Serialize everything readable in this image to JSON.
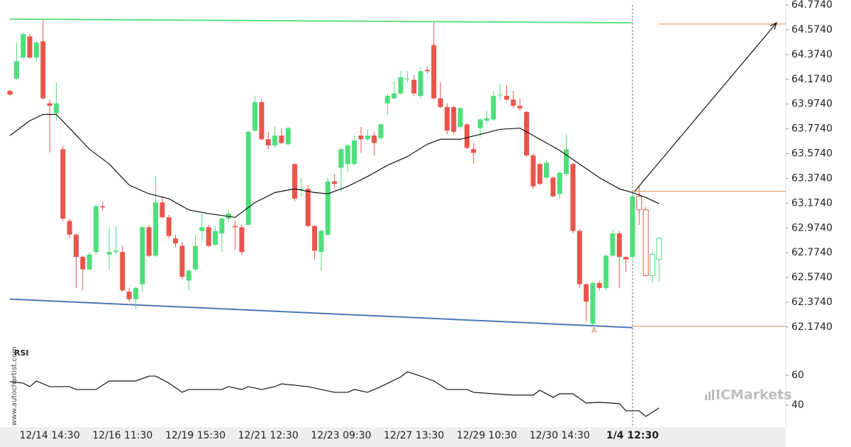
{
  "chart_data": {
    "type": "candlestick",
    "categories": [
      null,
      null,
      null,
      null,
      null,
      null,
      "12/14 14:30",
      null,
      null,
      null,
      null,
      null,
      null,
      null,
      null,
      null,
      null,
      "12/16 11:30",
      null,
      null,
      null,
      null,
      null,
      null,
      null,
      null,
      null,
      null,
      "12/19 15:30",
      null,
      null,
      null,
      null,
      null,
      null,
      null,
      null,
      null,
      null,
      "12/21 12:30",
      null,
      null,
      null,
      null,
      null,
      null,
      null,
      null,
      null,
      null,
      "12/23 09:30",
      null,
      null,
      null,
      null,
      null,
      null,
      null,
      null,
      null,
      null,
      "12/27 13:30",
      null,
      null,
      null,
      null,
      null,
      null,
      null,
      null,
      null,
      null,
      "12/29 10:30",
      null,
      null,
      null,
      null,
      null,
      null,
      null,
      null,
      null,
      null,
      "12/30 14:30",
      null,
      null,
      null,
      null,
      null,
      null,
      null,
      null,
      null,
      null,
      "1/4 12:30"
    ],
    "ohlc": [
      [
        64.08,
        64.09,
        64.04,
        64.05
      ],
      [
        64.18,
        64.47,
        64.17,
        64.32
      ],
      [
        64.35,
        64.55,
        64.34,
        64.54
      ],
      [
        64.52,
        64.54,
        64.34,
        64.35
      ],
      [
        64.35,
        64.48,
        64.32,
        64.47
      ],
      [
        64.48,
        64.65,
        64.01,
        64.02
      ],
      [
        63.98,
        64.01,
        63.58,
        63.96
      ],
      [
        63.9,
        64.15,
        63.84,
        63.98
      ],
      [
        63.61,
        63.64,
        63.03,
        63.05
      ],
      [
        63.03,
        63.05,
        62.89,
        62.92
      ],
      [
        62.92,
        62.93,
        62.49,
        62.74
      ],
      [
        62.74,
        62.75,
        62.47,
        62.64
      ],
      [
        62.64,
        62.78,
        62.63,
        62.76
      ],
      [
        62.78,
        63.16,
        62.76,
        63.15
      ],
      [
        63.15,
        63.19,
        63.11,
        63.14
      ],
      [
        62.76,
        62.98,
        62.64,
        62.78
      ],
      [
        62.78,
        62.99,
        62.76,
        62.79
      ],
      [
        62.78,
        62.83,
        62.46,
        62.47
      ],
      [
        62.46,
        62.49,
        62.38,
        62.4
      ],
      [
        62.4,
        62.5,
        62.32,
        62.49
      ],
      [
        62.52,
        62.99,
        62.46,
        62.98
      ],
      [
        62.98,
        63.0,
        62.74,
        62.75
      ],
      [
        62.75,
        63.39,
        62.74,
        63.18
      ],
      [
        63.18,
        63.23,
        63.05,
        63.06
      ],
      [
        63.06,
        63.08,
        62.89,
        62.91
      ],
      [
        62.89,
        62.92,
        62.82,
        62.85
      ],
      [
        62.83,
        62.86,
        62.56,
        62.58
      ],
      [
        62.55,
        62.64,
        62.47,
        62.63
      ],
      [
        62.64,
        62.92,
        62.63,
        62.83
      ],
      [
        62.95,
        63.09,
        62.86,
        62.98
      ],
      [
        62.98,
        63.0,
        62.82,
        62.83
      ],
      [
        62.84,
        62.99,
        62.83,
        62.95
      ],
      [
        62.93,
        63.06,
        62.78,
        63.05
      ],
      [
        63.05,
        63.12,
        63.02,
        63.09
      ],
      [
        62.99,
        63.03,
        62.8,
        62.98
      ],
      [
        62.98,
        63.0,
        62.76,
        62.78
      ],
      [
        63.0,
        63.76,
        62.99,
        63.75
      ],
      [
        63.76,
        64.04,
        63.75,
        63.99
      ],
      [
        63.99,
        64.02,
        63.68,
        63.69
      ],
      [
        63.69,
        63.75,
        63.61,
        63.64
      ],
      [
        63.64,
        63.79,
        63.62,
        63.72
      ],
      [
        63.72,
        63.78,
        63.65,
        63.66
      ],
      [
        63.65,
        63.79,
        63.64,
        63.78
      ],
      [
        63.49,
        63.5,
        63.19,
        63.21
      ],
      [
        63.29,
        63.38,
        63.23,
        63.29
      ],
      [
        63.29,
        63.32,
        62.98,
        62.99
      ],
      [
        62.99,
        63.0,
        62.72,
        62.79
      ],
      [
        62.78,
        62.96,
        62.63,
        62.95
      ],
      [
        62.92,
        63.38,
        62.91,
        63.35
      ],
      [
        63.35,
        63.41,
        63.29,
        63.33
      ],
      [
        63.46,
        63.62,
        63.26,
        63.61
      ],
      [
        63.49,
        63.65,
        63.43,
        63.64
      ],
      [
        63.49,
        63.72,
        63.48,
        63.68
      ],
      [
        63.72,
        63.79,
        63.58,
        63.69
      ],
      [
        63.69,
        63.77,
        63.68,
        63.72
      ],
      [
        63.72,
        63.75,
        63.56,
        63.66
      ],
      [
        63.7,
        63.82,
        63.69,
        63.81
      ],
      [
        63.98,
        64.06,
        63.89,
        64.04
      ],
      [
        64.02,
        64.16,
        64.01,
        64.06
      ],
      [
        64.06,
        64.24,
        64.05,
        64.19
      ],
      [
        64.18,
        64.24,
        64.15,
        64.18
      ],
      [
        64.17,
        64.21,
        64.04,
        64.06
      ],
      [
        64.04,
        64.27,
        64.02,
        64.24
      ],
      [
        64.25,
        64.28,
        64.22,
        64.24
      ],
      [
        64.45,
        64.64,
        64.01,
        64.02
      ],
      [
        64.02,
        64.15,
        63.94,
        63.95
      ],
      [
        63.95,
        63.98,
        63.73,
        63.76
      ],
      [
        63.95,
        63.96,
        63.73,
        63.75
      ],
      [
        63.79,
        63.95,
        63.78,
        63.94
      ],
      [
        63.81,
        63.82,
        63.61,
        63.62
      ],
      [
        63.61,
        63.66,
        63.49,
        63.58
      ],
      [
        63.78,
        63.86,
        63.71,
        63.85
      ],
      [
        63.84,
        63.92,
        63.82,
        63.86
      ],
      [
        63.85,
        64.08,
        63.84,
        64.04
      ],
      [
        64.05,
        64.14,
        64.01,
        64.05
      ],
      [
        64.04,
        64.13,
        64.0,
        64.01
      ],
      [
        64.01,
        64.08,
        63.94,
        63.96
      ],
      [
        63.96,
        64.02,
        63.92,
        63.94
      ],
      [
        63.91,
        63.92,
        63.55,
        63.56
      ],
      [
        63.56,
        63.58,
        63.29,
        63.31
      ],
      [
        63.49,
        63.5,
        63.32,
        63.33
      ],
      [
        63.38,
        63.52,
        63.37,
        63.5
      ],
      [
        63.38,
        63.39,
        63.22,
        63.23
      ],
      [
        63.25,
        63.43,
        63.21,
        63.42
      ],
      [
        63.41,
        63.73,
        63.39,
        63.61
      ],
      [
        63.49,
        63.5,
        62.93,
        62.95
      ],
      [
        62.95,
        62.97,
        62.49,
        62.52
      ],
      [
        62.52,
        62.53,
        62.22,
        62.38
      ],
      [
        62.2,
        62.54,
        62.19,
        62.53
      ],
      [
        62.53,
        62.55,
        62.47,
        62.49
      ],
      [
        62.49,
        62.76,
        62.47,
        62.75
      ],
      [
        62.75,
        62.96,
        62.74,
        62.93
      ],
      [
        62.93,
        62.95,
        62.49,
        62.74
      ],
      [
        62.74,
        62.75,
        62.62,
        62.72
      ],
      [
        62.74,
        63.25,
        62.72,
        63.23
      ]
    ],
    "projected_ohlc": [
      [
        63.23,
        63.31,
        63.0,
        63.12
      ],
      [
        63.12,
        63.14,
        62.58,
        62.59
      ],
      [
        62.59,
        62.78,
        62.53,
        62.76
      ],
      [
        62.72,
        62.9,
        62.54,
        62.89
      ]
    ],
    "up_color": "#4ddf7a",
    "down_color": "#e9544b",
    "ylim": [
      62.008,
      64.814
    ],
    "yticks": [
      {
        "value": 64.774,
        "label": "64.7740"
      },
      {
        "value": 64.574,
        "label": "64.5740"
      },
      {
        "value": 64.374,
        "label": "64.3740"
      },
      {
        "value": 64.174,
        "label": "64.1740"
      },
      {
        "value": 63.974,
        "label": "63.9740"
      },
      {
        "value": 63.774,
        "label": "63.7740"
      },
      {
        "value": 63.574,
        "label": "63.5740"
      },
      {
        "value": 63.374,
        "label": "63.3740"
      },
      {
        "value": 63.174,
        "label": "63.1740"
      },
      {
        "value": 62.974,
        "label": "62.9740"
      },
      {
        "value": 62.774,
        "label": "62.7740"
      },
      {
        "value": 62.574,
        "label": "62.5740"
      },
      {
        "value": 62.374,
        "label": "62.3740"
      },
      {
        "value": 62.174,
        "label": "62.1740"
      }
    ],
    "ma": {
      "color": "#111111",
      "x": [
        0,
        3,
        5,
        7,
        9,
        12,
        15,
        18,
        21,
        24,
        27,
        30,
        34,
        37,
        40,
        43,
        46,
        48,
        51,
        54,
        57,
        60,
        63,
        65,
        68,
        71,
        74,
        77,
        80,
        83,
        86,
        89,
        92,
        94,
        96,
        98
      ],
      "values": [
        63.72,
        63.84,
        63.89,
        63.89,
        63.78,
        63.61,
        63.49,
        63.32,
        63.25,
        63.21,
        63.12,
        63.09,
        63.06,
        63.18,
        63.26,
        63.29,
        63.26,
        63.25,
        63.31,
        63.39,
        63.48,
        63.55,
        63.65,
        63.69,
        63.69,
        63.73,
        63.77,
        63.78,
        63.69,
        63.6,
        63.49,
        63.38,
        63.29,
        63.26,
        63.22,
        63.17
      ]
    },
    "resistance": {
      "color": "#5ee27f",
      "values": [
        64.66,
        64.63
      ]
    },
    "support": {
      "color": "#4a78b5",
      "values": [
        62.4,
        62.17
      ]
    },
    "levels": {
      "color": "#d98c45",
      "values": [
        64.62,
        63.27,
        62.18
      ]
    },
    "arrow": [
      63.27,
      64.63
    ],
    "annotation_label": "A",
    "rsi": {
      "label": "RSI",
      "ylim": [
        25.2,
        78.6
      ],
      "yticks": [
        40,
        60
      ],
      "x": [
        0,
        2,
        3,
        4,
        6,
        9,
        10,
        13,
        15,
        19,
        21,
        22,
        24,
        26,
        27,
        32,
        33,
        35,
        36,
        38,
        40,
        41,
        45,
        49,
        51,
        52,
        54,
        56,
        59,
        60,
        62,
        64,
        66,
        69,
        70,
        73,
        76,
        79,
        80,
        82,
        83,
        85,
        87,
        89,
        92,
        93,
        95,
        96,
        98
      ],
      "values": [
        55.7,
        54.8,
        52.4,
        56.2,
        52.4,
        52.4,
        50.5,
        50.5,
        56.2,
        56.2,
        59.5,
        59.5,
        54.8,
        48.6,
        50.5,
        50.5,
        52.4,
        50.5,
        52.4,
        50.5,
        52.4,
        54.3,
        52.4,
        48.6,
        48.6,
        50.5,
        48.6,
        52.4,
        59.0,
        62.4,
        59.5,
        56.2,
        50.5,
        50.5,
        48.6,
        47.6,
        46.7,
        46.7,
        50.0,
        45.2,
        47.6,
        47.6,
        41.4,
        41.9,
        41.0,
        36.2,
        36.2,
        32.4,
        38.1
      ]
    },
    "watermark": "www.autochartist.com",
    "logo": "ICMarkets"
  }
}
